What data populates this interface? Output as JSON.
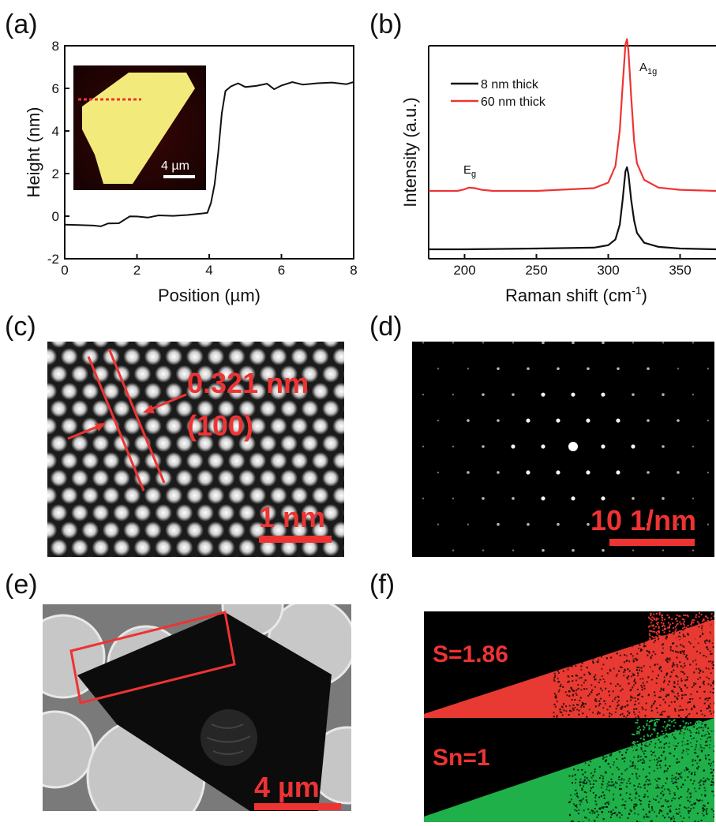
{
  "panels": {
    "a": "(a)",
    "b": "(b)",
    "c": "(c)",
    "d": "(d)",
    "e": "(e)",
    "f": "(f)"
  },
  "inset_a": {
    "scale_bar": "4 µm"
  },
  "panel_c": {
    "spacing": "0.321 nm",
    "plane": "(100)",
    "scale_bar": "1 nm"
  },
  "panel_d": {
    "scale_bar": "10 1/nm"
  },
  "panel_e": {
    "scale_bar": "4 µm"
  },
  "panel_f": {
    "s_label": "S=1.86",
    "sn_label": "Sn=1"
  },
  "colors": {
    "red": "#ee3333",
    "green": "#1fb04a",
    "black": "#111111",
    "afm_yellow": "#f3ea7c"
  },
  "chart_data": [
    {
      "type": "line",
      "title": "",
      "xlabel": "Position (µm)",
      "ylabel": "Height (nm)",
      "xlim": [
        0,
        8
      ],
      "ylim": [
        -2,
        8
      ],
      "xticks": [
        "0",
        "2",
        "4",
        "6",
        "8"
      ],
      "yticks": [
        "-2",
        "0",
        "2",
        "4",
        "6",
        "8"
      ],
      "series": [
        {
          "color": "#111111",
          "x": [
            0,
            0.4,
            0.8,
            1.0,
            1.2,
            1.5,
            1.8,
            2.0,
            2.3,
            2.6,
            3.0,
            3.4,
            3.8,
            3.95,
            4.05,
            4.15,
            4.25,
            4.35,
            4.45,
            4.6,
            4.8,
            5.0,
            5.3,
            5.6,
            5.8,
            6.0,
            6.3,
            6.6,
            7.0,
            7.4,
            7.8,
            8.0
          ],
          "y": [
            -0.4,
            -0.45,
            -0.4,
            -0.5,
            -0.35,
            -0.3,
            -0.05,
            0.0,
            -0.05,
            0.0,
            0.05,
            0.05,
            0.1,
            0.2,
            0.6,
            1.5,
            3.0,
            4.8,
            5.9,
            6.1,
            6.2,
            6.1,
            6.1,
            6.2,
            6.0,
            6.1,
            6.3,
            6.2,
            6.2,
            6.3,
            6.2,
            6.3
          ]
        }
      ]
    },
    {
      "type": "line",
      "title": "",
      "xlabel": "Raman shift (cm-1)",
      "ylabel": "Intensity (a.u.)",
      "xlim": [
        175,
        375
      ],
      "xticks": [
        "200",
        "250",
        "300",
        "350"
      ],
      "legend_position": "top-left",
      "series": [
        {
          "name": "8 nm thick",
          "color": "#111111",
          "x": [
            175,
            200,
            250,
            290,
            300,
            305,
            308,
            310,
            312,
            313,
            314,
            316,
            318,
            320,
            325,
            335,
            350,
            375
          ],
          "y": [
            0.0,
            0.0,
            0.01,
            0.02,
            0.05,
            0.12,
            0.3,
            0.6,
            0.95,
            1.0,
            0.92,
            0.6,
            0.35,
            0.2,
            0.08,
            0.03,
            0.01,
            0.0
          ]
        },
        {
          "name": "60 nm thick",
          "color": "#ee3333",
          "x": [
            175,
            195,
            200,
            203,
            207,
            212,
            220,
            250,
            290,
            300,
            305,
            308,
            310,
            312,
            313,
            314,
            316,
            318,
            320,
            325,
            335,
            350,
            375
          ],
          "y": [
            0.0,
            0.0,
            0.03,
            0.06,
            0.05,
            0.02,
            0.0,
            0.0,
            0.05,
            0.15,
            0.45,
            1.1,
            1.9,
            2.65,
            2.75,
            2.55,
            1.7,
            0.9,
            0.5,
            0.2,
            0.06,
            0.02,
            0.0
          ]
        }
      ],
      "annotations": [
        "Eg",
        "A1g"
      ]
    }
  ]
}
